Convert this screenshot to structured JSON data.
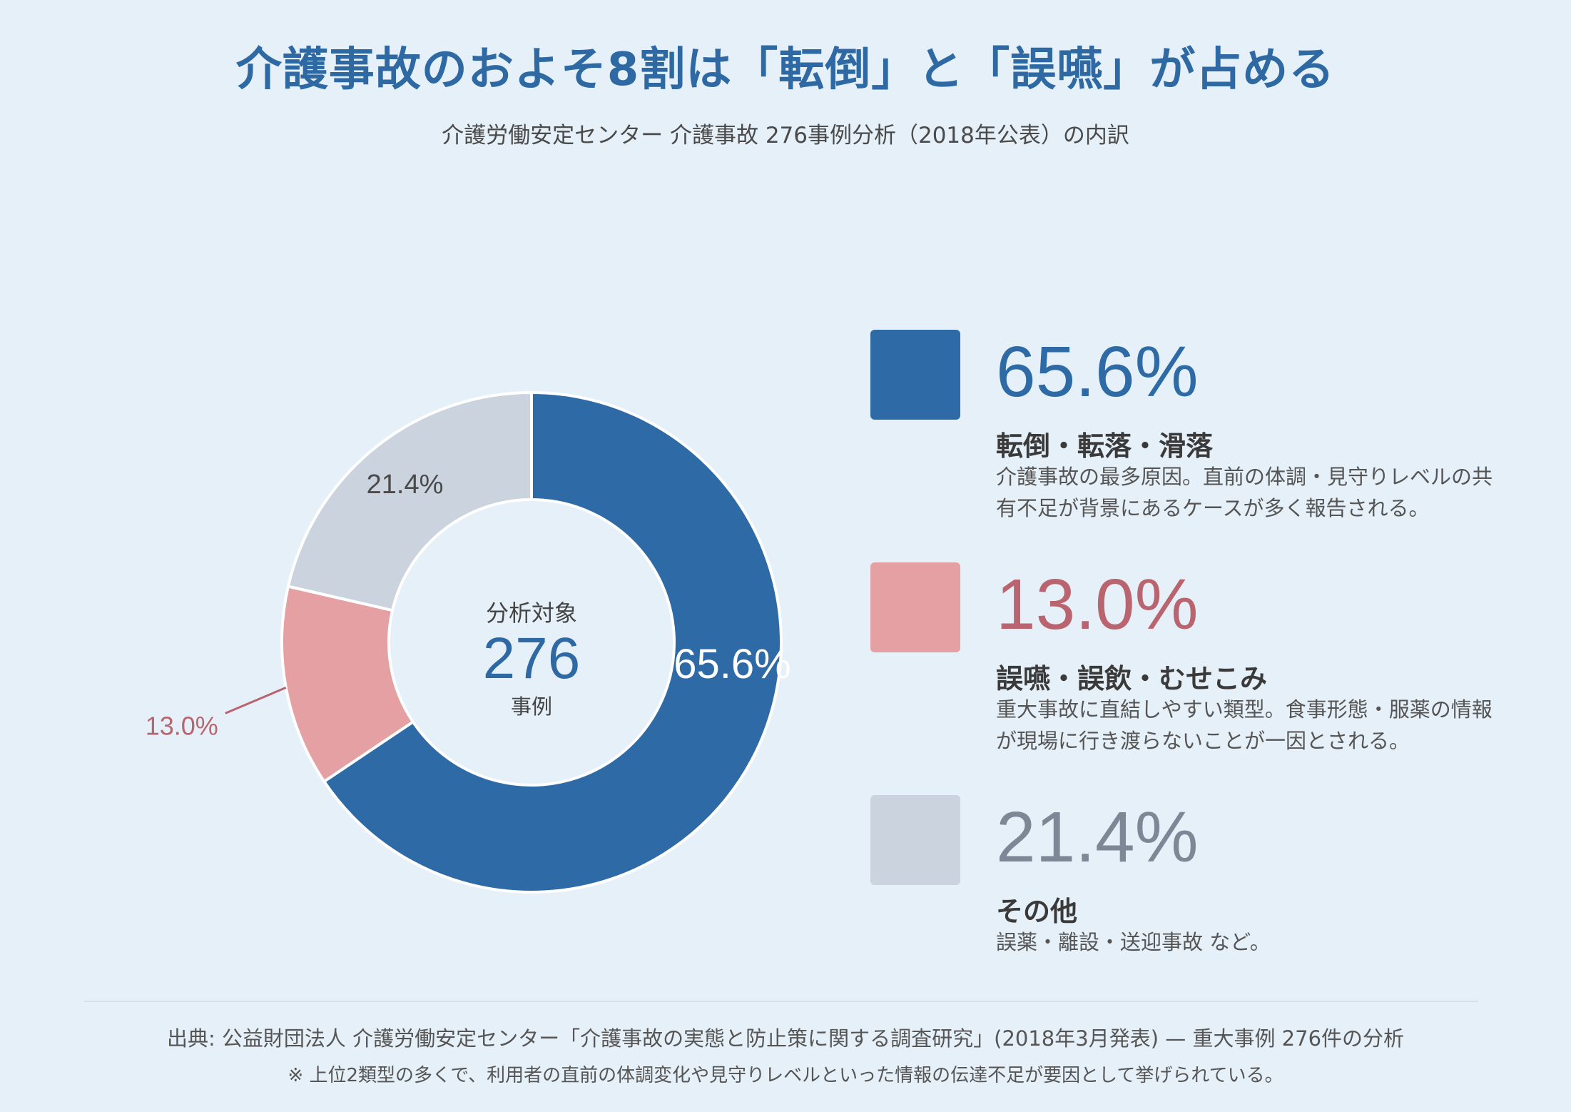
{
  "header": {
    "title": "介護事故のおよそ8割は「転倒」と「誤嚥」が占める",
    "subtitle": "介護労働安定センター 介護事故 276事例分析（2018年公表）の内訳"
  },
  "center": {
    "label": "分析対象",
    "value": "276",
    "unit": "事例"
  },
  "chart_data": {
    "type": "pie",
    "donut": true,
    "start_angle_deg": 0,
    "direction": "clockwise",
    "categories": [
      "転倒・転落・滑落",
      "誤嚥・誤飲・むせこみ",
      "その他"
    ],
    "values": [
      65.6,
      13.0,
      21.4
    ],
    "labels": [
      "65.6%",
      "13.0%",
      "21.4%"
    ],
    "colors": [
      "#2e6aa5",
      "#e5a0a4",
      "#cbd3de"
    ],
    "label_colors": [
      "#ffffff",
      "#b9646e",
      "#4a4a4a"
    ],
    "total": 276
  },
  "legend": {
    "items": [
      {
        "pct": "65.6%",
        "name": "転倒・転落・滑落",
        "desc": "介護事故の最多原因。直前の体調・見守りレベルの共有不足が背景にあるケースが多く報告される。",
        "color": "#2e6aa5",
        "pct_color": "#2e6aa5"
      },
      {
        "pct": "13.0%",
        "name": "誤嚥・誤飲・むせこみ",
        "desc": "重大事故に直結しやすい類型。食事形態・服薬の情報が現場に行き渡らないことが一因とされる。",
        "color": "#e5a0a4",
        "pct_color": "#b9646e"
      },
      {
        "pct": "21.4%",
        "name": "その他",
        "desc": "誤薬・離設・送迎事故 など。",
        "color": "#cbd3de",
        "pct_color": "#7d8795"
      }
    ]
  },
  "footer": {
    "source": "出典: 公益財団法人 介護労働安定センター「介護事故の実態と防止策に関する調査研究」(2018年3月発表) — 重大事例 276件の分析",
    "note": "※ 上位2類型の多くで、利用者の直前の体調変化や見守りレベルといった情報の伝達不足が要因として挙げられている。"
  }
}
